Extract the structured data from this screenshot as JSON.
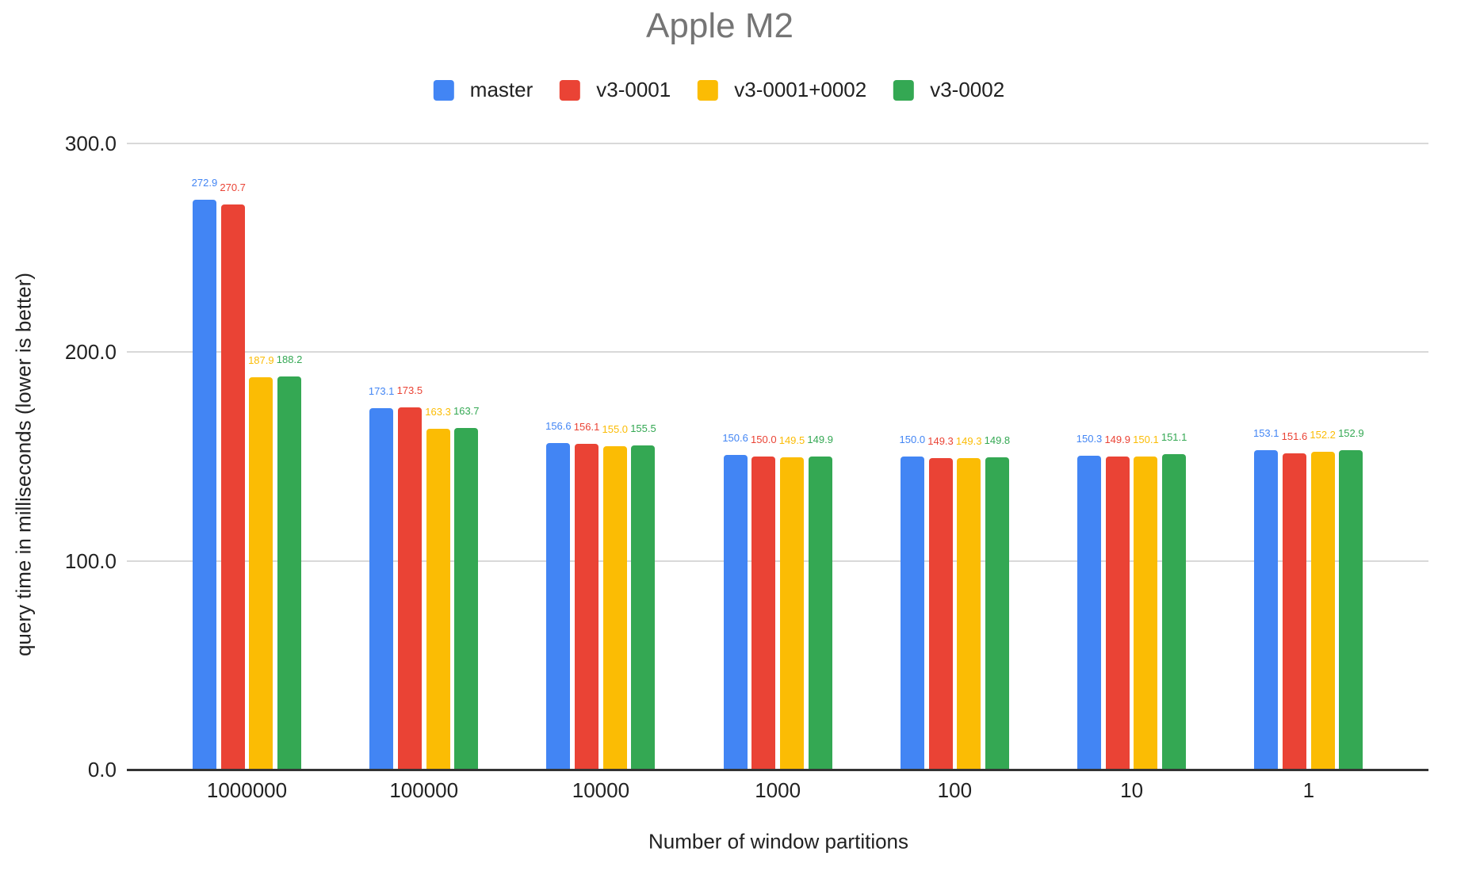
{
  "title": "Apple M2",
  "chart_data": {
    "type": "bar",
    "title": "Apple M2",
    "categories": [
      "1000000",
      "100000",
      "10000",
      "1000",
      "100",
      "10",
      "1"
    ],
    "series": [
      {
        "name": "master",
        "color": "#4285F4",
        "values": [
          272.9,
          173.1,
          156.6,
          150.6,
          150.0,
          150.3,
          153.1
        ]
      },
      {
        "name": "v3-0001",
        "color": "#EA4335",
        "values": [
          270.7,
          173.5,
          156.1,
          150.0,
          149.3,
          149.9,
          151.6
        ]
      },
      {
        "name": "v3-0001+0002",
        "color": "#FBBC04",
        "values": [
          187.9,
          163.3,
          155.0,
          149.5,
          149.3,
          150.1,
          152.2
        ]
      },
      {
        "name": "v3-0002",
        "color": "#34A853",
        "values": [
          188.2,
          163.7,
          155.5,
          149.9,
          149.8,
          151.1,
          152.9
        ]
      }
    ],
    "xlabel": "Number of window partitions",
    "ylabel": "query time in milliseconds (lower is better)",
    "ylim": [
      0,
      300
    ],
    "yticks": [
      {
        "value": 0,
        "label": "0.0"
      },
      {
        "value": 100,
        "label": "100.0"
      },
      {
        "value": 200,
        "label": "200.0"
      },
      {
        "value": 300,
        "label": "300.0"
      }
    ],
    "grid": true,
    "legend_position": "top",
    "value_labels": true
  },
  "colors": {
    "title_text": "#757575",
    "axis_text": "#222222",
    "gridline": "#d9d9d9",
    "baseline": "#333333",
    "background": "#ffffff"
  }
}
